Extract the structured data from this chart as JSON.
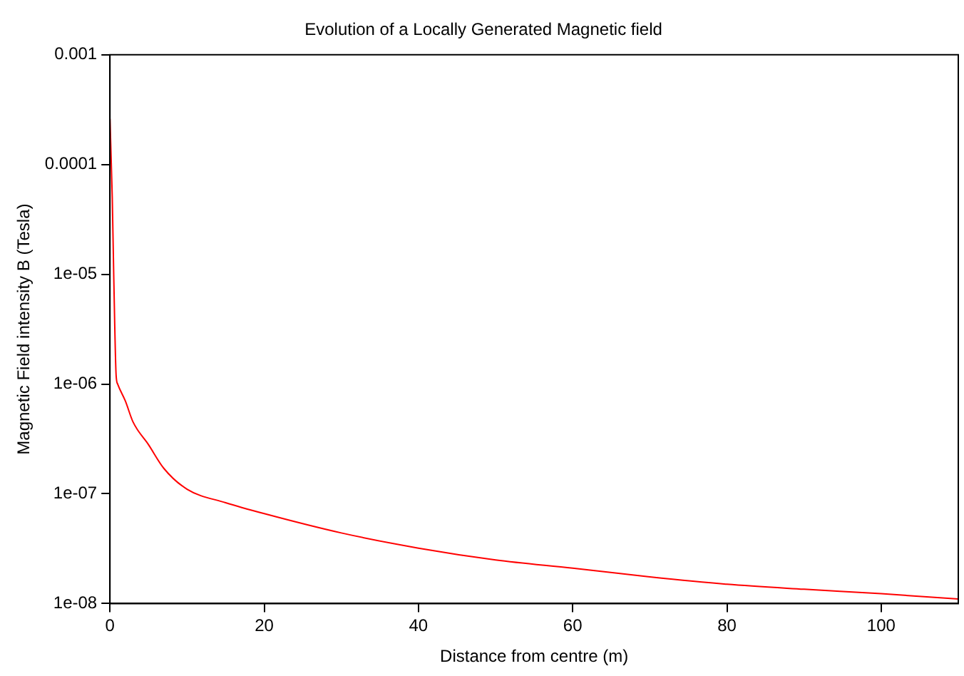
{
  "chart_data": {
    "type": "line",
    "title": "Evolution of a Locally Generated Magnetic field",
    "xlabel": "Distance from centre (m)",
    "ylabel": "Magnetic Field intensity B (Tesla)",
    "x": [
      0,
      0.3,
      0.5,
      0.8,
      1,
      2,
      3,
      5,
      7,
      10,
      15,
      20,
      30,
      40,
      50,
      60,
      70,
      80,
      90,
      100,
      110
    ],
    "series": [
      {
        "color": "#ff0000",
        "values": [
          0.00026,
          5e-05,
          9e-06,
          1.2e-06,
          1e-06,
          7e-07,
          4.5e-07,
          2.8e-07,
          1.7e-07,
          1.1e-07,
          8.3e-08,
          6.6e-08,
          4.4e-08,
          3.2e-08,
          2.5e-08,
          2.1e-08,
          1.75e-08,
          1.5e-08,
          1.35e-08,
          1.23e-08,
          1.1e-08
        ]
      }
    ],
    "xlim": [
      0,
      110
    ],
    "xticks": [
      0,
      20,
      40,
      60,
      80,
      100
    ],
    "ylim": [
      1e-08,
      0.001
    ],
    "log": "y",
    "yticks": [
      {
        "value": 1e-08,
        "label": "1e-08"
      },
      {
        "value": 1e-07,
        "label": "1e-07"
      },
      {
        "value": 1e-06,
        "label": "1e-06"
      },
      {
        "value": 1e-05,
        "label": "1e-05"
      },
      {
        "value": 0.0001,
        "label": "0.0001"
      },
      {
        "value": 0.001,
        "label": "0.001"
      }
    ],
    "grid": false,
    "legend": false,
    "marker": "none",
    "line_style": "solid"
  }
}
